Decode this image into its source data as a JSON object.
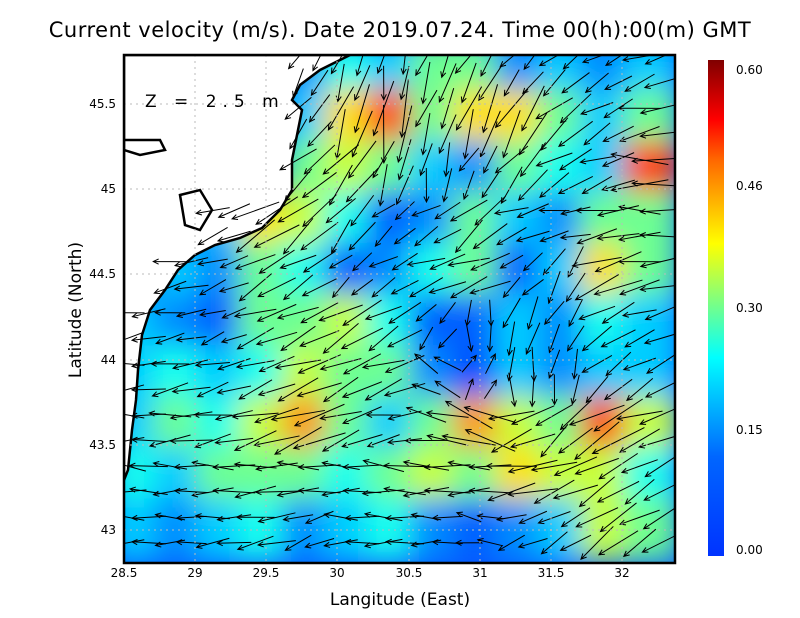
{
  "chart_data": {
    "type": "heatmap",
    "title": "Current velocity (m/s). Date 2019.07.24. Time 00(h):00(m) GMT",
    "xlabel": "Langitude (East)",
    "ylabel": "Latitude (North)",
    "depth_label": "Z = 2.5 m",
    "xlim": [
      28.5,
      32.37
    ],
    "ylim": [
      42.81,
      45.79
    ],
    "x_ticks": [
      "28.5",
      "29",
      "29.5",
      "30",
      "30.5",
      "31",
      "31.5",
      "32"
    ],
    "y_ticks": [
      "45.5",
      "45",
      "44.5",
      "44",
      "43.5",
      "43"
    ],
    "colorbar": {
      "ticks": [
        "0.60",
        "0.46",
        "0.30",
        "0.15",
        "0.00"
      ],
      "range": [
        0,
        0.6
      ]
    },
    "grid_lon": [
      28.6,
      28.9,
      29.2,
      29.5,
      29.8,
      30.1,
      30.4,
      30.7,
      31.0,
      31.3,
      31.6,
      31.9,
      32.2
    ],
    "grid_lat": [
      45.7,
      45.4,
      45.1,
      44.8,
      44.5,
      44.2,
      43.9,
      43.6,
      43.3,
      43.0
    ],
    "speed": [
      [
        null,
        null,
        null,
        null,
        0.15,
        0.25,
        0.2,
        0.3,
        0.3,
        0.15,
        0.2,
        0.15,
        0.2
      ],
      [
        null,
        null,
        null,
        null,
        0.2,
        0.4,
        0.5,
        0.3,
        0.4,
        0.4,
        0.3,
        0.2,
        0.3
      ],
      [
        null,
        null,
        null,
        null,
        0.3,
        0.35,
        0.3,
        0.2,
        0.15,
        0.3,
        0.25,
        0.2,
        0.5
      ],
      [
        null,
        null,
        0.2,
        0.4,
        0.35,
        0.25,
        0.1,
        0.15,
        0.3,
        0.2,
        0.15,
        0.3,
        0.3
      ],
      [
        null,
        0.2,
        0.15,
        0.3,
        0.25,
        0.1,
        0.15,
        0.25,
        0.3,
        0.1,
        0.2,
        0.4,
        0.3
      ],
      [
        0.2,
        0.15,
        0.1,
        0.3,
        0.3,
        0.35,
        0.25,
        0.1,
        0.1,
        0.2,
        0.15,
        0.25,
        0.2
      ],
      [
        0.2,
        0.25,
        0.2,
        0.25,
        0.35,
        0.3,
        0.3,
        0.15,
        0.05,
        0.2,
        0.15,
        0.2,
        0.2
      ],
      [
        0.2,
        0.3,
        0.25,
        0.35,
        0.45,
        0.3,
        0.2,
        0.3,
        0.45,
        0.35,
        0.3,
        0.5,
        0.35
      ],
      [
        0.25,
        0.2,
        0.3,
        0.3,
        0.3,
        0.25,
        0.3,
        0.35,
        0.3,
        0.4,
        0.35,
        0.35,
        0.25
      ],
      [
        0.2,
        0.15,
        0.2,
        0.25,
        0.15,
        0.2,
        0.25,
        0.15,
        0.1,
        0.15,
        0.2,
        0.35,
        0.3
      ]
    ],
    "direction_deg": [
      [
        null,
        null,
        null,
        null,
        240,
        250,
        260,
        250,
        240,
        230,
        220,
        210,
        200
      ],
      [
        null,
        null,
        null,
        null,
        230,
        250,
        260,
        250,
        250,
        240,
        220,
        210,
        190
      ],
      [
        null,
        null,
        null,
        null,
        220,
        230,
        250,
        260,
        240,
        230,
        210,
        200,
        180
      ],
      [
        null,
        null,
        200,
        210,
        220,
        230,
        220,
        210,
        220,
        200,
        190,
        190,
        180
      ],
      [
        null,
        190,
        200,
        210,
        210,
        220,
        210,
        200,
        200,
        220,
        240,
        200,
        190
      ],
      [
        190,
        190,
        200,
        200,
        205,
        210,
        210,
        230,
        270,
        250,
        240,
        210,
        200
      ],
      [
        185,
        190,
        195,
        200,
        200,
        205,
        200,
        150,
        60,
        270,
        260,
        220,
        210
      ],
      [
        180,
        185,
        190,
        195,
        200,
        200,
        190,
        170,
        160,
        200,
        220,
        210,
        200
      ],
      [
        175,
        180,
        180,
        185,
        180,
        180,
        175,
        180,
        180,
        190,
        200,
        210,
        210
      ],
      [
        180,
        180,
        185,
        190,
        200,
        180,
        180,
        180,
        170,
        200,
        210,
        215,
        210
      ]
    ]
  }
}
